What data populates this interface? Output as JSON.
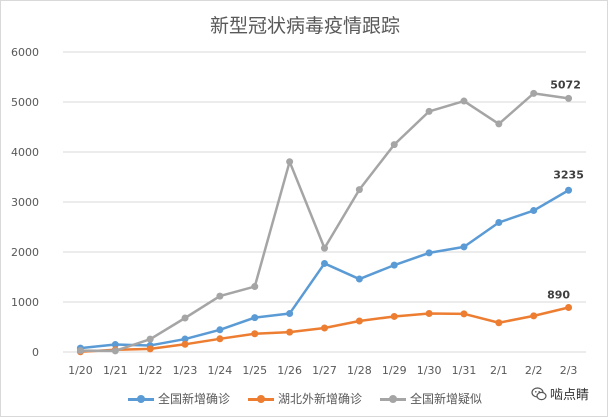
{
  "chart_data": {
    "type": "line",
    "title": "新型冠状病毒疫情跟踪",
    "categories": [
      "1/20",
      "1/21",
      "1/22",
      "1/23",
      "1/24",
      "1/25",
      "1/26",
      "1/27",
      "1/28",
      "1/29",
      "1/30",
      "1/31",
      "2/1",
      "2/2",
      "2/3"
    ],
    "ylim": [
      0,
      6000
    ],
    "yticks": [
      0,
      1000,
      2000,
      3000,
      4000,
      5000,
      6000
    ],
    "grid": true,
    "legend_position": "bottom",
    "series": [
      {
        "name": "全国新增确诊",
        "color": "#5b9bd5",
        "values": [
          77,
          149,
          131,
          259,
          444,
          688,
          769,
          1771,
          1459,
          1737,
          1982,
          2102,
          2590,
          2829,
          3235
        ],
        "end_label": "3235"
      },
      {
        "name": "湖北外新增确诊",
        "color": "#ed7d31",
        "values": [
          5,
          44,
          62,
          154,
          264,
          365,
          398,
          480,
          620,
          711,
          770,
          763,
          585,
          722,
          890
        ],
        "end_label": "890"
      },
      {
        "name": "全国新增疑似",
        "color": "#a5a5a5",
        "values": [
          27,
          23,
          257,
          680,
          1118,
          1309,
          3806,
          2077,
          3248,
          4148,
          4812,
          5019,
          4562,
          5173,
          5072
        ],
        "end_label": "5072"
      }
    ]
  },
  "watermark": {
    "text": "啮点睛",
    "icon": "wechat-icon"
  }
}
